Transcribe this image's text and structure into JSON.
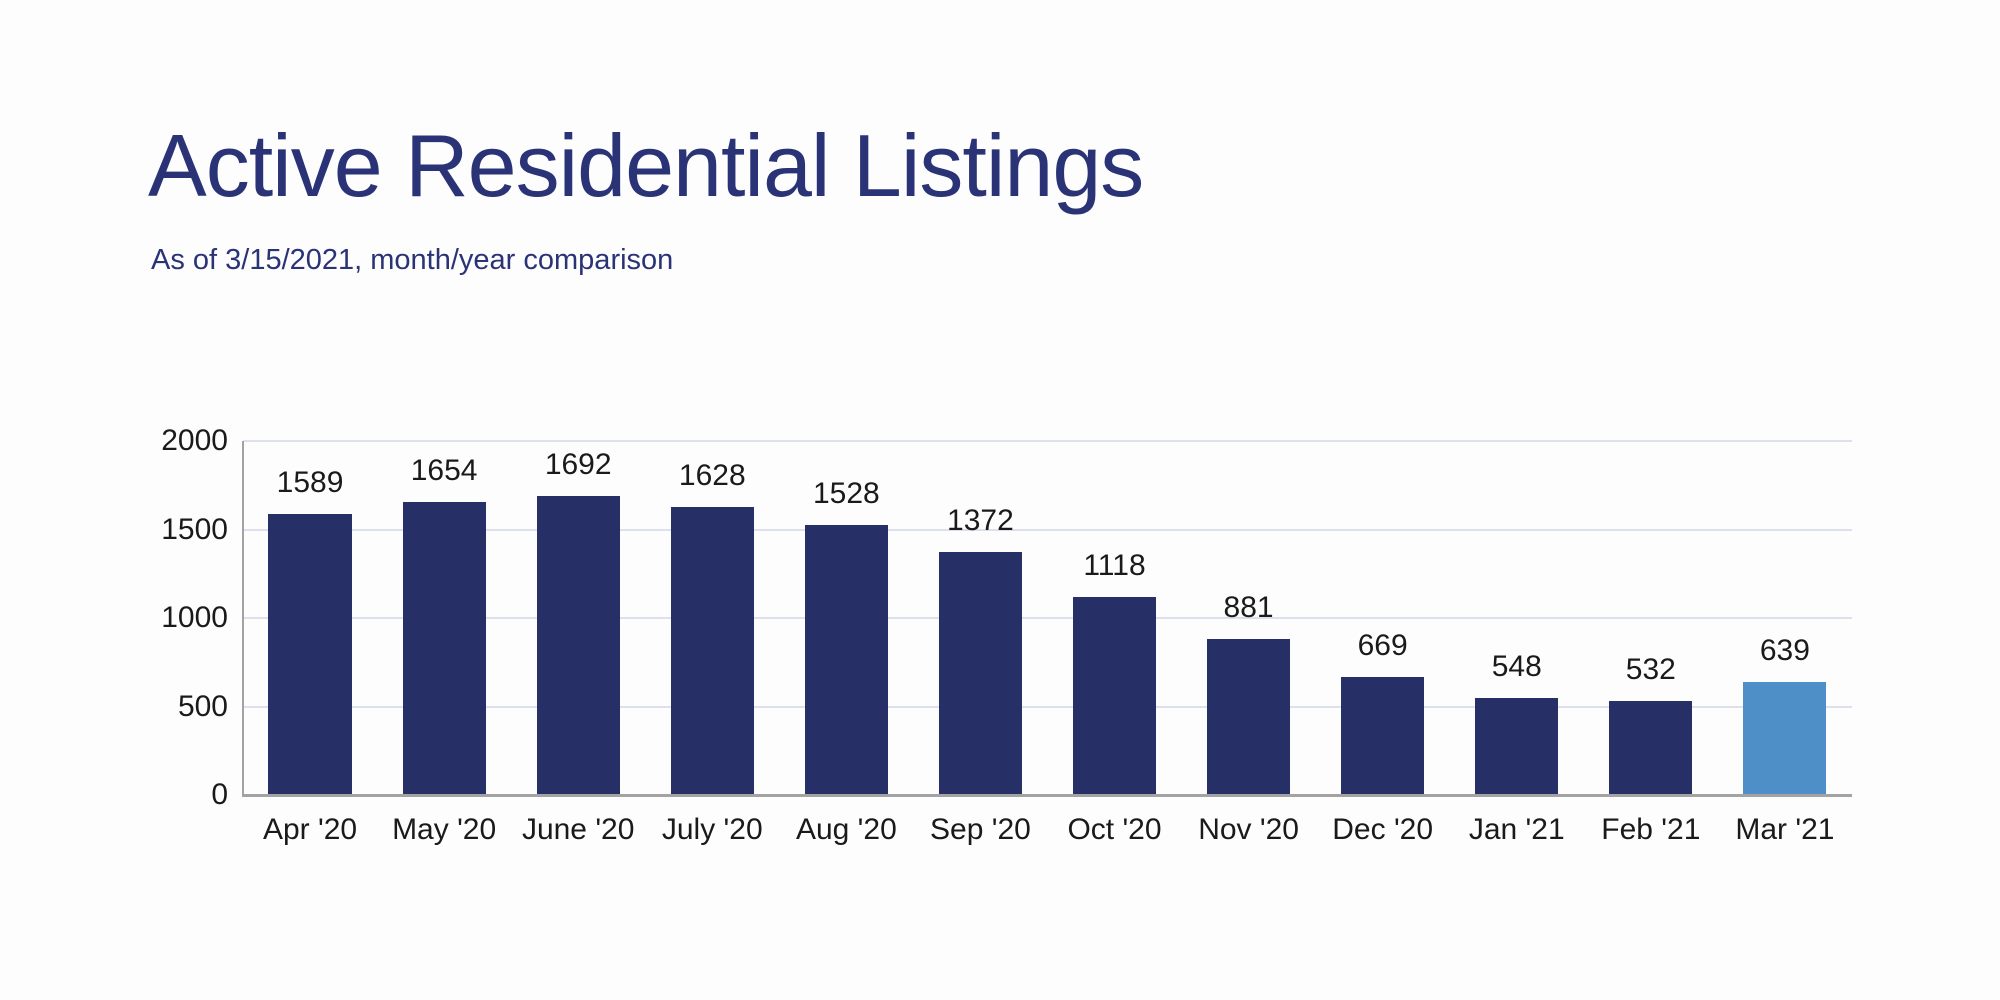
{
  "page": {
    "title": "Active Residential Listings",
    "subtitle": "As of 3/15/2021, month/year comparison"
  },
  "chart_data": {
    "type": "bar",
    "title": "Active Residential Listings",
    "subtitle": "As of 3/15/2021, month/year comparison",
    "categories": [
      "Apr '20",
      "May '20",
      "June '20",
      "July '20",
      "Aug '20",
      "Sep '20",
      "Oct '20",
      "Nov '20",
      "Dec '20",
      "Jan '21",
      "Feb '21",
      "Mar '21"
    ],
    "values": [
      1589,
      1654,
      1692,
      1628,
      1528,
      1372,
      1118,
      881,
      669,
      548,
      532,
      639
    ],
    "data_labels_visible": true,
    "xlabel": "",
    "ylabel": "",
    "ylim": [
      0,
      2000
    ],
    "yticks": [
      0,
      500,
      1000,
      1500,
      2000
    ],
    "grid": "horizontal",
    "legend": "none",
    "colors": {
      "bar": "#262f66",
      "highlight_bar": "#4e8fc7",
      "gridline": "#dce1ed",
      "axis_line": "#a3a3a3",
      "labels": "#1a1a1a",
      "title": "#2b3377",
      "background": "#fdfdfd"
    },
    "highlight_bar_index": 11
  }
}
